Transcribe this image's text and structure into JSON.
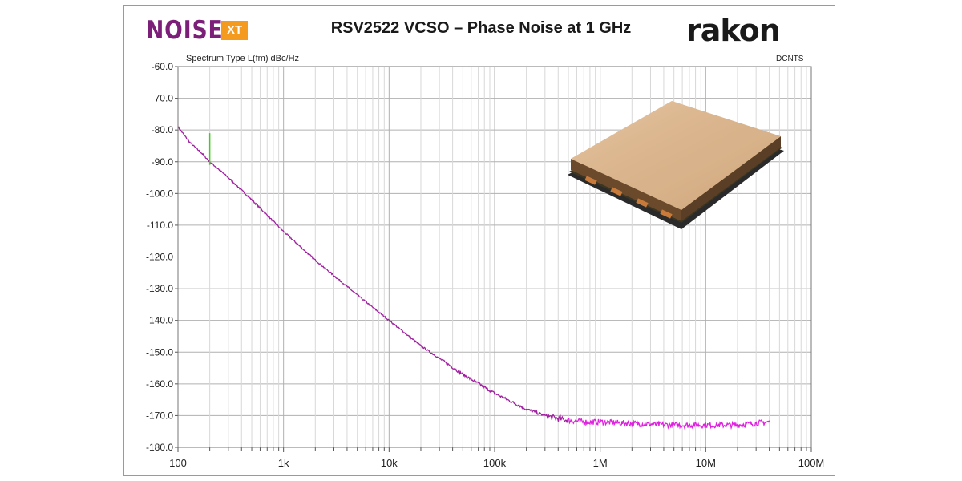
{
  "header": {
    "logo_left_main": "NOISE",
    "logo_left_badge": "XT",
    "title": "RSV2522 VCSO – Phase Noise at 1 GHz",
    "logo_right": "rakon",
    "spectrum_type_label": "Spectrum Type  L(fm) dBc/Hz",
    "corner_label": "DCNTS"
  },
  "colors": {
    "brand_purple": "#7b1f78",
    "brand_orange": "#f39a1f",
    "trace": "#a020a0",
    "trace_tail": "#e020e0",
    "spur": "#44cc22",
    "grid_major": "#b0b0b0",
    "grid_minor": "#d8d8d8"
  },
  "product_image": {
    "icon": "oscillator-package-photo"
  },
  "chart_data": {
    "type": "line",
    "title": "RSV2522 VCSO – Phase Noise at 1 GHz",
    "xlabel": "",
    "ylabel": "Spectrum Type  L(fm) dBc/Hz",
    "xscale": "log",
    "xlim": [
      100,
      100000000
    ],
    "ylim": [
      -180,
      -60
    ],
    "grid": true,
    "x_tick_labels": [
      "100",
      "1k",
      "10k",
      "100k",
      "1M",
      "10M",
      "100M"
    ],
    "y_tick_labels": [
      "-60.0",
      "-70.0",
      "-80.0",
      "-90.0",
      "-100.0",
      "-110.0",
      "-120.0",
      "-130.0",
      "-140.0",
      "-150.0",
      "-160.0",
      "-170.0",
      "-180.0"
    ],
    "series": [
      {
        "x": [
          100,
          130,
          170,
          200,
          300,
          500,
          1000,
          2000,
          5000,
          10000,
          20000,
          50000,
          100000,
          200000,
          300000,
          400000,
          500000,
          700000,
          1000000,
          2000000,
          5000000,
          10000000,
          20000000,
          40000000
        ],
        "y": [
          -79,
          -84,
          -87.5,
          -90,
          -95,
          -102,
          -112,
          -121,
          -132,
          -140,
          -148,
          -157,
          -163,
          -168,
          -170,
          -171,
          -171.5,
          -172,
          -172,
          -172.5,
          -173,
          -173,
          -173,
          -172
        ]
      }
    ],
    "spurs": [
      {
        "x": 200,
        "y_top": -81,
        "y_bottom": -91
      }
    ]
  }
}
